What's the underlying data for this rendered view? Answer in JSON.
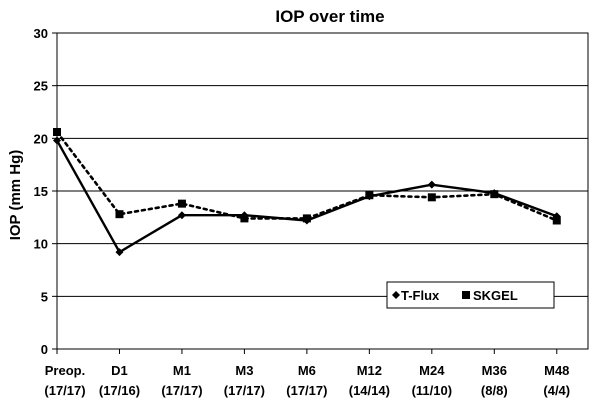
{
  "chart_data": {
    "type": "line",
    "title": "IOP over time",
    "ylabel": "IOP (mm Hg)",
    "xlabel": "",
    "ylim": [
      0,
      30
    ],
    "yticks": [
      0,
      5,
      10,
      15,
      20,
      25,
      30
    ],
    "grid": "horizontal",
    "legend_position": "bottom-right",
    "categories": [
      [
        "Preop.",
        "(17/17)"
      ],
      [
        "D1",
        "(17/16)"
      ],
      [
        "M1",
        "(17/17)"
      ],
      [
        "M3",
        "(17/17)"
      ],
      [
        "M6",
        "(17/17)"
      ],
      [
        "M12",
        "(14/14)"
      ],
      [
        "M24",
        "(11/10)"
      ],
      [
        "M36",
        "(8/8)"
      ],
      [
        "M48",
        "(4/4)"
      ]
    ],
    "series": [
      {
        "name": "T-Flux",
        "marker": "diamond",
        "line": "solid",
        "color": "#000000",
        "values": [
          19.8,
          9.2,
          12.7,
          12.7,
          12.2,
          14.5,
          15.6,
          14.8,
          12.6
        ]
      },
      {
        "name": "SKGEL",
        "marker": "square",
        "line": "dotted",
        "color": "#000000",
        "values": [
          20.6,
          12.8,
          13.8,
          12.4,
          12.4,
          14.6,
          14.4,
          14.7,
          12.2
        ]
      }
    ]
  }
}
